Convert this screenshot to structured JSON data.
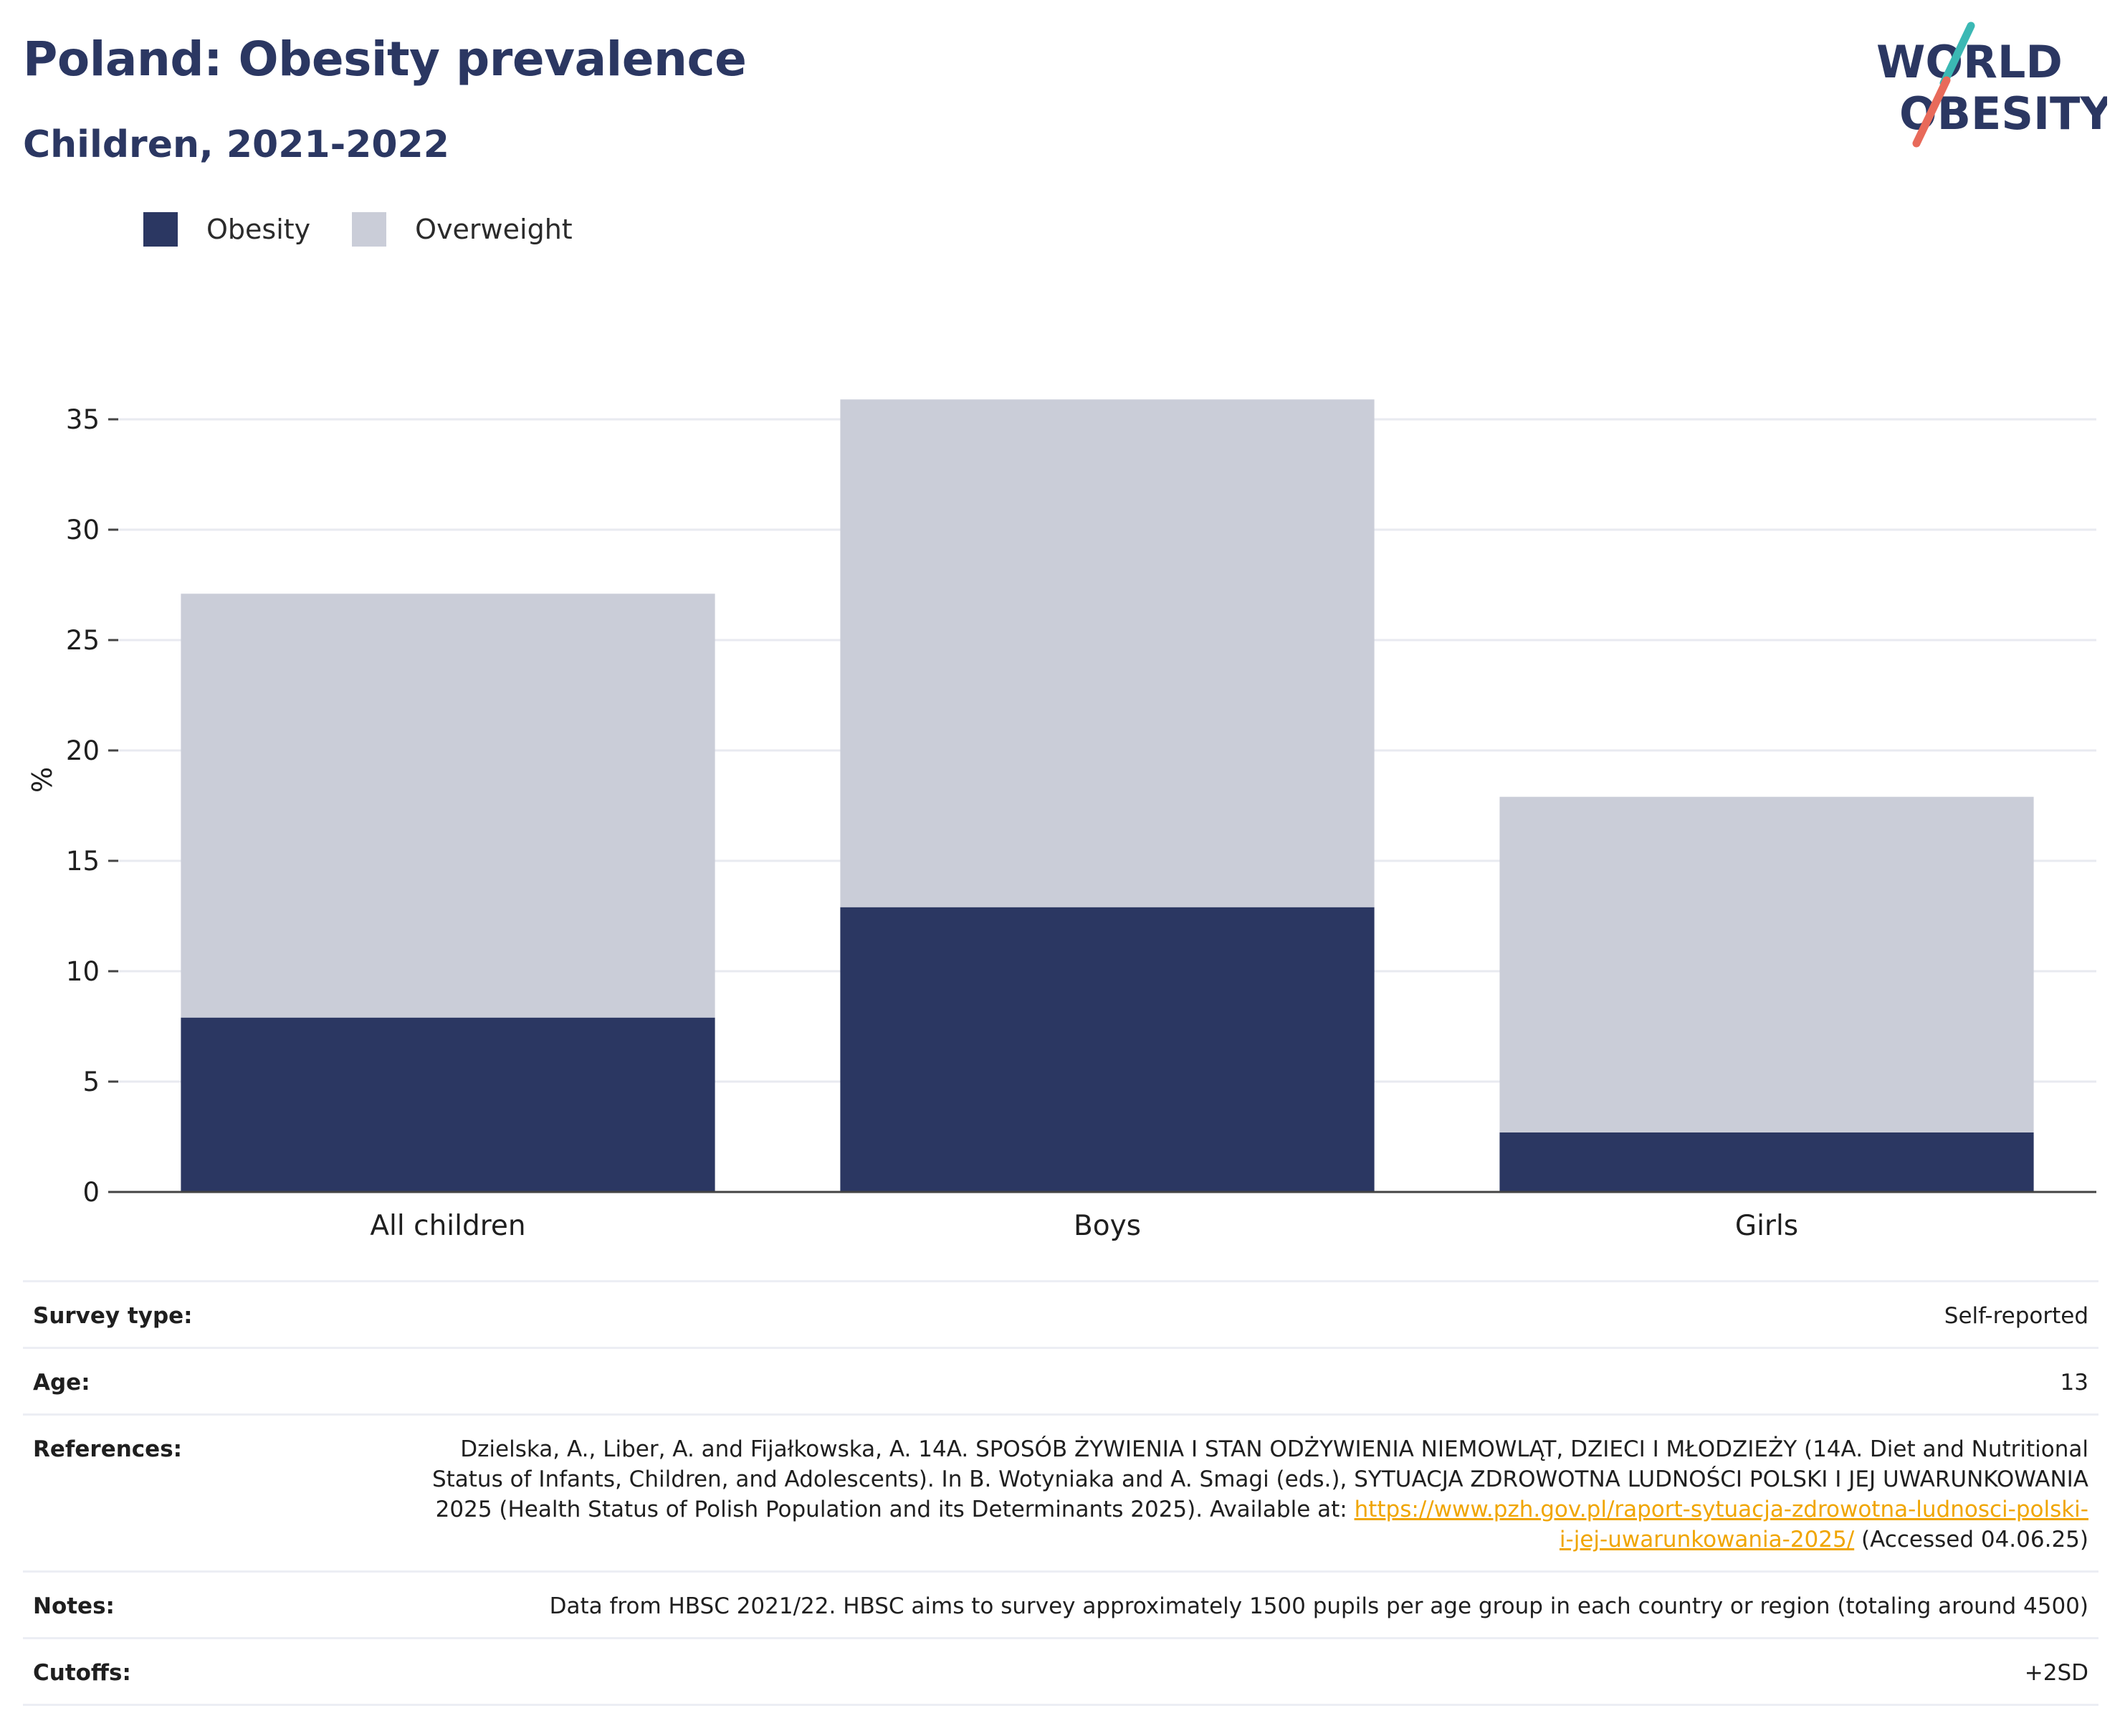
{
  "header": {
    "title": "Poland: Obesity prevalence",
    "subtitle": "Children, 2021-2022"
  },
  "logo": {
    "line1": "WORLD",
    "line2": "OBESITY",
    "colors": {
      "navy": "#2b3762",
      "teal": "#3bb8b4",
      "coral": "#e86a5a"
    }
  },
  "legend": {
    "items": [
      {
        "label": "Obesity",
        "color": "#2b3762"
      },
      {
        "label": "Overweight",
        "color": "#cacdd8"
      }
    ]
  },
  "chart_data": {
    "type": "bar",
    "stacked": true,
    "categories": [
      "All children",
      "Boys",
      "Girls"
    ],
    "series": [
      {
        "name": "Obesity",
        "color": "#2b3762",
        "values": [
          7.9,
          12.9,
          2.7
        ]
      },
      {
        "name": "Overweight",
        "color": "#cacdd8",
        "values": [
          19.2,
          23.0,
          15.2
        ]
      }
    ],
    "title": "",
    "xlabel": "",
    "ylabel": "%",
    "ylim": [
      0,
      38
    ],
    "yticks": [
      0,
      5,
      10,
      15,
      20,
      25,
      30,
      35
    ],
    "grid": true,
    "legend_position": "top-left"
  },
  "info": {
    "rows": [
      {
        "label": "Survey type:",
        "value": "Self-reported"
      },
      {
        "label": "Age:",
        "value": "13"
      },
      {
        "label": "References:",
        "value_pre": "Dzielska, A., Liber, A. and Fijałkowska, A. 14A. SPOSÓB ŻYWIENIA I STAN ODŻYWIENIA NIEMOWLĄT, DZIECI I MŁODZIEŻY (14A. Diet and Nutritional Status of Infants, Children, and Adolescents). In B. Wotyniaka and A. Smagi (eds.), SYTUACJA ZDROWOTNA LUDNOŚCI POLSKI I JEJ UWARUNKOWANIA 2025 (Health Status of Polish Population and its Determinants 2025). Available at:",
        "link": "https://www.pzh.gov.pl/raport-sytuacja-zdrowotna-ludnosci-polski-i-jej-uwarunkowania-2025/",
        "value_post": "(Accessed 04.06.25)"
      },
      {
        "label": "Notes:",
        "value": "Data from HBSC 2021/22. HBSC aims to survey approximately 1500 pupils per age group in each country or region (totaling around 4500)"
      },
      {
        "label": "Cutoffs:",
        "value": "+2SD"
      }
    ]
  }
}
